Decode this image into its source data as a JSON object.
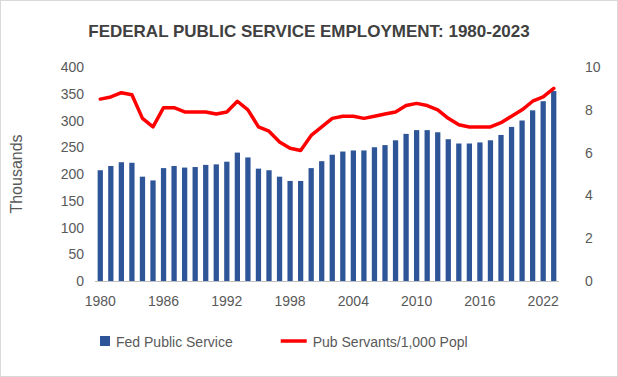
{
  "chart_data": {
    "type": "bar",
    "title": "FEDERAL PUBLIC SERVICE EMPLOYMENT: 1980-2023",
    "y_label": "Thousands",
    "categories": [
      "1980",
      null,
      null,
      null,
      null,
      null,
      "1986",
      null,
      null,
      null,
      null,
      null,
      "1992",
      null,
      null,
      null,
      null,
      null,
      "1998",
      null,
      null,
      null,
      null,
      null,
      "2004",
      null,
      null,
      null,
      null,
      null,
      "2010",
      null,
      null,
      null,
      null,
      null,
      "2016",
      null,
      null,
      null,
      null,
      null,
      "2022",
      null
    ],
    "series": [
      {
        "name": "Fed Public Service",
        "type": "bar",
        "color": "#2e5597",
        "values": [
          207,
          215,
          222,
          221,
          195,
          188,
          211,
          215,
          212,
          213,
          217,
          218,
          223,
          240,
          231,
          210,
          207,
          195,
          187,
          187,
          211,
          224,
          236,
          242,
          244,
          244,
          250,
          254,
          263,
          275,
          282,
          282,
          278,
          265,
          257,
          257,
          259,
          263,
          273,
          288,
          300,
          319,
          336,
          355
        ]
      },
      {
        "name": "Pub Servants/1,000 Popl",
        "type": "line",
        "color": "#ff0000",
        "axis": "y2",
        "values": [
          8.5,
          8.6,
          8.8,
          8.7,
          7.6,
          7.2,
          8.1,
          8.1,
          7.9,
          7.9,
          7.9,
          7.8,
          7.9,
          8.4,
          8.0,
          7.2,
          7.0,
          6.5,
          6.2,
          6.1,
          6.8,
          7.2,
          7.6,
          7.7,
          7.7,
          7.6,
          7.7,
          7.8,
          7.9,
          8.2,
          8.3,
          8.2,
          8.0,
          7.6,
          7.3,
          7.2,
          7.2,
          7.2,
          7.4,
          7.7,
          8.0,
          8.4,
          8.6,
          9.0
        ]
      }
    ],
    "ylim": [
      0,
      400
    ],
    "yticks": [
      0,
      50,
      100,
      150,
      200,
      250,
      300,
      350,
      400
    ],
    "y2lim": [
      0,
      10
    ],
    "y2ticks": [
      0,
      2,
      4,
      6,
      8,
      10
    ],
    "grid": false,
    "legend": "bottom"
  }
}
